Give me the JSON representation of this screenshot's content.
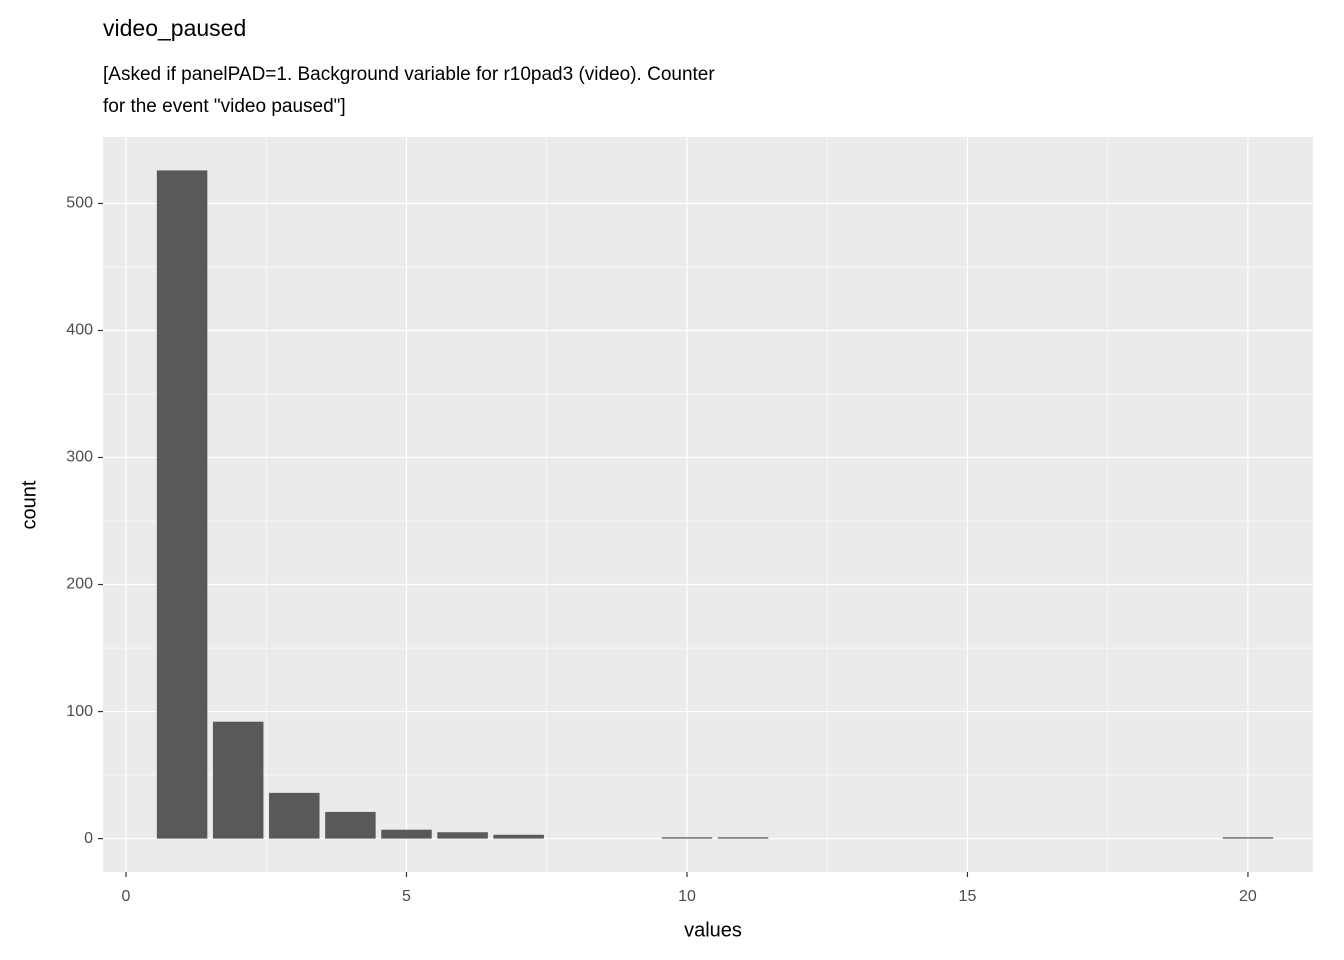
{
  "chart_data": {
    "type": "bar",
    "title": "video_paused",
    "subtitle": [
      "[Asked if panelPAD=1. Background variable for r10pad3 (video). Counter",
      "for the event \"video paused\"]"
    ],
    "x_label": "values",
    "y_label": "count",
    "x": [
      1,
      2,
      3,
      4,
      5,
      6,
      7,
      10,
      11,
      20
    ],
    "values": [
      526,
      92,
      36,
      21,
      7,
      5,
      3,
      1,
      1,
      1
    ],
    "color": "#595959",
    "bar_width": 0.9,
    "xlim": [
      -0.41,
      21.16
    ],
    "xticks": [
      0,
      5,
      10,
      15,
      20
    ],
    "ylim": [
      -26.3,
      552.3
    ],
    "yticks": [
      0,
      100,
      200,
      300,
      400,
      500
    ],
    "x_minor_grid": [
      2.5,
      7.5,
      12.5,
      17.5
    ],
    "y_minor_grid": [
      50,
      150,
      250,
      350,
      450
    ],
    "grid": true
  }
}
